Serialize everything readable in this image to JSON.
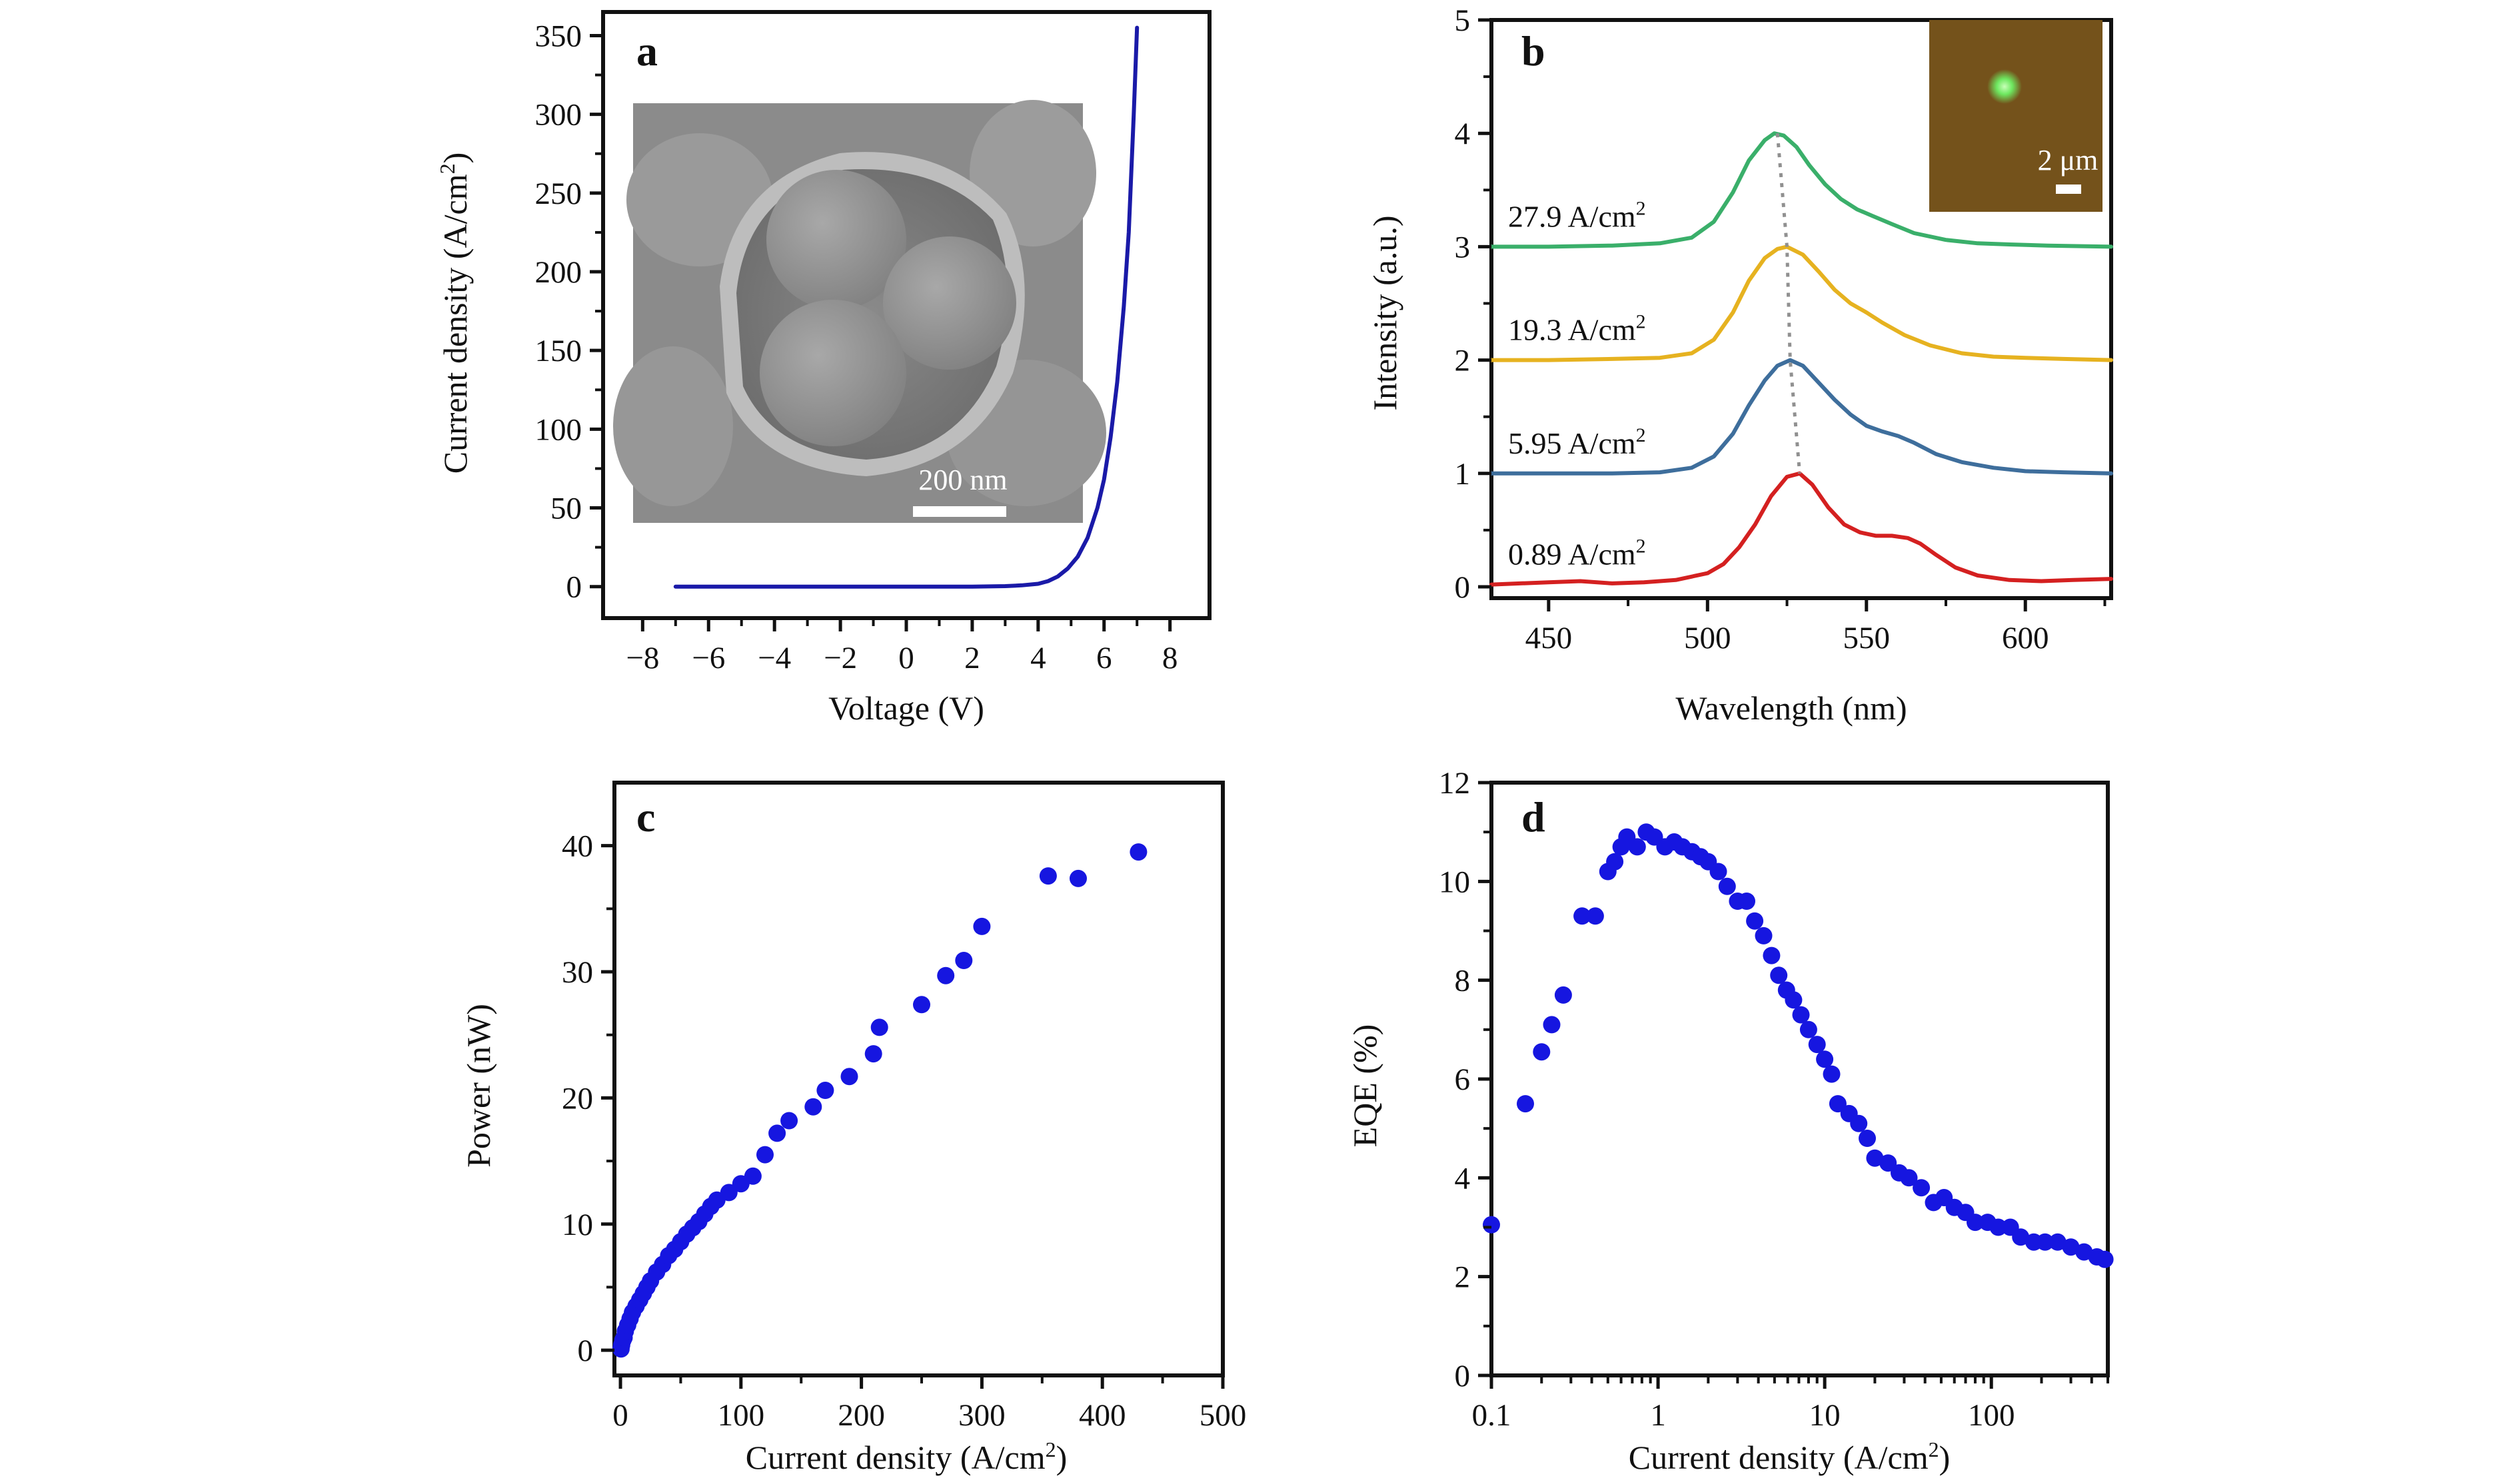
{
  "chart_data": [
    {
      "panel": "a",
      "type": "line",
      "xlabel": "Voltage (V)",
      "ylabel": "Current density (A/cm",
      "ylabel_sup": "2",
      "ylabel_end": ")",
      "xlim": [
        -9.2,
        9.2
      ],
      "ylim": [
        -20,
        365
      ],
      "xticks": [
        -8,
        -6,
        -4,
        -2,
        0,
        2,
        4,
        6,
        8
      ],
      "xtick_labels": [
        "−8",
        "−6",
        "−4",
        "−2",
        "0",
        "2",
        "4",
        "6",
        "8"
      ],
      "yticks": [
        0,
        50,
        100,
        150,
        200,
        250,
        300,
        350
      ],
      "color": "#1a1aa8",
      "series": [
        {
          "x": [
            -7,
            -4,
            -2,
            0,
            2,
            3,
            3.5,
            4,
            4.3,
            4.6,
            4.9,
            5.2,
            5.5,
            5.8,
            6.0,
            6.2,
            6.4,
            6.6,
            6.75,
            6.9,
            7.0
          ],
          "values": [
            0,
            0,
            0,
            0,
            0,
            0.3,
            0.8,
            1.8,
            3.5,
            6.5,
            11.5,
            19,
            31,
            50,
            68,
            95,
            130,
            178,
            225,
            300,
            355
          ]
        }
      ],
      "inset": {
        "kind": "SEM micrograph",
        "scale_bar_label": "200 nm",
        "background": "#858585"
      }
    },
    {
      "panel": "b",
      "type": "line",
      "xlabel": "Wavelength (nm)",
      "ylabel": "Intensity (a.u.)",
      "xlim": [
        432,
        627
      ],
      "ylim": [
        -0.1,
        5
      ],
      "xticks": [
        450,
        500,
        550,
        600
      ],
      "yticks": [
        0,
        1,
        2,
        3,
        4,
        5
      ],
      "series": [
        {
          "label": "0.89 A/cm",
          "label_sup": "2",
          "color": "#d42020",
          "x": [
            432,
            450,
            460,
            470,
            480,
            490,
            500,
            505,
            510,
            515,
            520,
            525,
            529,
            533,
            538,
            543,
            548,
            553,
            558,
            563,
            567,
            572,
            578,
            585,
            595,
            605,
            615,
            627
          ],
          "values": [
            0.02,
            0.04,
            0.05,
            0.03,
            0.04,
            0.06,
            0.12,
            0.2,
            0.35,
            0.55,
            0.8,
            0.97,
            1.0,
            0.9,
            0.7,
            0.55,
            0.48,
            0.45,
            0.45,
            0.43,
            0.38,
            0.28,
            0.17,
            0.1,
            0.06,
            0.05,
            0.06,
            0.07
          ]
        },
        {
          "label": "5.95 A/cm",
          "label_sup": "2",
          "color": "#3e6e9c",
          "x": [
            432,
            450,
            470,
            485,
            495,
            502,
            508,
            513,
            518,
            522,
            526,
            530,
            535,
            540,
            545,
            550,
            555,
            560,
            565,
            572,
            580,
            590,
            600,
            612,
            627
          ],
          "values": [
            1.0,
            1.0,
            1.0,
            1.01,
            1.05,
            1.15,
            1.35,
            1.6,
            1.82,
            1.95,
            2.0,
            1.95,
            1.8,
            1.65,
            1.52,
            1.42,
            1.37,
            1.33,
            1.27,
            1.17,
            1.1,
            1.05,
            1.02,
            1.01,
            1.0
          ]
        },
        {
          "label": "19.3 A/cm",
          "label_sup": "2",
          "color": "#e6b220",
          "x": [
            432,
            450,
            470,
            485,
            495,
            502,
            508,
            513,
            518,
            522,
            525,
            530,
            535,
            540,
            545,
            550,
            555,
            562,
            570,
            580,
            590,
            600,
            612,
            627
          ],
          "values": [
            2.0,
            2.0,
            2.01,
            2.02,
            2.06,
            2.18,
            2.42,
            2.7,
            2.9,
            2.98,
            3.0,
            2.93,
            2.78,
            2.62,
            2.5,
            2.42,
            2.33,
            2.22,
            2.13,
            2.06,
            2.03,
            2.02,
            2.01,
            2.0
          ]
        },
        {
          "label": "27.9 A/cm",
          "label_sup": "2",
          "color": "#3aaf6a",
          "x": [
            432,
            450,
            470,
            485,
            495,
            502,
            508,
            513,
            518,
            521,
            524,
            528,
            532,
            537,
            542,
            547,
            552,
            558,
            565,
            575,
            585,
            595,
            607,
            627
          ],
          "values": [
            3.0,
            3.0,
            3.01,
            3.03,
            3.08,
            3.22,
            3.48,
            3.76,
            3.94,
            4.0,
            3.98,
            3.88,
            3.72,
            3.55,
            3.42,
            3.33,
            3.27,
            3.2,
            3.12,
            3.06,
            3.03,
            3.02,
            3.01,
            3.0
          ]
        }
      ],
      "peak_guide": {
        "x": [
          522,
          525,
          526,
          529
        ],
        "y": [
          4.0,
          3.0,
          2.0,
          1.0
        ],
        "color": "#909090"
      },
      "inset": {
        "kind": "optical micrograph",
        "scale_bar_label": "2 μm",
        "background": "#7a4a1c",
        "spot_color": "#7dff70"
      }
    },
    {
      "panel": "c",
      "type": "scatter",
      "xlabel": "Current density (A/cm",
      "xlabel_sup": "2",
      "xlabel_end": ")",
      "ylabel": "Power (nW)",
      "xlim": [
        -5,
        500
      ],
      "ylim": [
        -2,
        45
      ],
      "xticks": [
        0,
        100,
        200,
        300,
        400,
        500
      ],
      "yticks": [
        0,
        10,
        20,
        30,
        40
      ],
      "color": "#1616e0",
      "x": [
        0.5,
        1,
        2,
        3,
        4,
        6,
        8,
        10,
        13,
        16,
        19,
        22,
        25,
        30,
        35,
        40,
        45,
        50,
        55,
        60,
        65,
        70,
        75,
        80,
        90,
        100,
        110,
        120,
        130,
        140,
        160,
        170,
        190,
        210,
        215,
        250,
        270,
        285,
        300,
        355,
        380,
        430
      ],
      "values": [
        0.1,
        0.4,
        0.8,
        1.0,
        1.5,
        2.0,
        2.5,
        3.0,
        3.5,
        4.0,
        4.5,
        5.0,
        5.5,
        6.2,
        6.8,
        7.5,
        8.0,
        8.6,
        9.2,
        9.7,
        10.2,
        10.8,
        11.4,
        11.9,
        12.5,
        13.2,
        13.8,
        15.5,
        17.2,
        18.2,
        19.3,
        20.6,
        21.7,
        23.5,
        25.6,
        27.4,
        29.7,
        30.9,
        33.6,
        37.6,
        37.4,
        39.5
      ]
    },
    {
      "panel": "d",
      "type": "scatter",
      "xlabel": "Current density (A/cm",
      "xlabel_sup": "2",
      "xlabel_end": ")",
      "ylabel": "EQE (%)",
      "xscale": "log",
      "xlim": [
        0.1,
        500
      ],
      "ylim": [
        0,
        12
      ],
      "xticks": [
        0.1,
        1,
        10,
        100
      ],
      "xtick_labels": [
        "0.1",
        "1",
        "10",
        "100"
      ],
      "yticks": [
        0,
        2,
        4,
        6,
        8,
        10,
        12
      ],
      "color": "#1616e0",
      "x": [
        0.1,
        0.16,
        0.2,
        0.23,
        0.27,
        0.35,
        0.42,
        0.5,
        0.55,
        0.6,
        0.65,
        0.75,
        0.85,
        0.95,
        1.1,
        1.25,
        1.4,
        1.6,
        1.8,
        2.0,
        2.3,
        2.6,
        3.0,
        3.4,
        3.8,
        4.3,
        4.8,
        5.3,
        5.9,
        6.5,
        7.2,
        8.0,
        9.0,
        10,
        11,
        12,
        14,
        16,
        18,
        20,
        24,
        28,
        32,
        38,
        45,
        52,
        60,
        70,
        80,
        95,
        110,
        130,
        150,
        180,
        210,
        250,
        300,
        360,
        430,
        480
      ],
      "values": [
        3.05,
        5.5,
        6.55,
        7.1,
        7.7,
        9.3,
        9.3,
        10.2,
        10.4,
        10.7,
        10.9,
        10.7,
        11.0,
        10.9,
        10.7,
        10.8,
        10.7,
        10.6,
        10.5,
        10.4,
        10.2,
        9.9,
        9.6,
        9.6,
        9.2,
        8.9,
        8.5,
        8.1,
        7.8,
        7.6,
        7.3,
        7.0,
        6.7,
        6.4,
        6.1,
        5.5,
        5.3,
        5.1,
        4.8,
        4.4,
        4.3,
        4.1,
        4.0,
        3.8,
        3.5,
        3.6,
        3.4,
        3.3,
        3.1,
        3.1,
        3.0,
        3.0,
        2.8,
        2.7,
        2.7,
        2.7,
        2.6,
        2.5,
        2.4,
        2.35
      ]
    }
  ],
  "colors": {
    "axis": "#111111",
    "marker": "#1616e0"
  }
}
